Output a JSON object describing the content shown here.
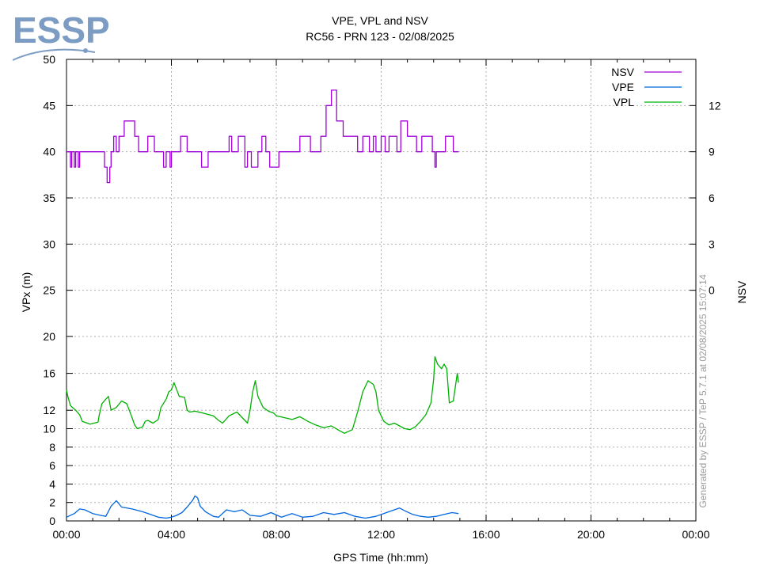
{
  "logo": {
    "text": "ESSP",
    "color": "#7c9cc4"
  },
  "chart_data": {
    "type": "line",
    "title": "VPE, VPL and NSV",
    "subtitle": "RC56 - PRN 123 - 02/08/2025",
    "xlabel": "GPS Time (hh:mm)",
    "ylabel": "VPx (m)",
    "y2label": "NSV",
    "watermark": "Generated by ESSP / TeP 5.7.1 at 02/08/2025 15:07:14",
    "x_unit": "hours",
    "xlim": [
      0,
      24
    ],
    "x_ticks": [
      {
        "value": 0,
        "label": "00:00"
      },
      {
        "value": 4,
        "label": "04:00"
      },
      {
        "value": 8,
        "label": "08:00"
      },
      {
        "value": 12,
        "label": "12:00"
      },
      {
        "value": 16,
        "label": "16:00"
      },
      {
        "value": 20,
        "label": "20:00"
      },
      {
        "value": 24,
        "label": "00:00"
      }
    ],
    "y_axis_note": "piecewise: 0-20 m on the lower band, 20-50 m on the upper band",
    "y_ticks_left": [
      {
        "value": 0,
        "label": "0"
      },
      {
        "value": 2,
        "label": "2"
      },
      {
        "value": 4,
        "label": "4"
      },
      {
        "value": 6,
        "label": "6"
      },
      {
        "value": 8,
        "label": "8"
      },
      {
        "value": 10,
        "label": "10"
      },
      {
        "value": 12,
        "label": "12"
      },
      {
        "value": 16,
        "label": "16"
      },
      {
        "value": 20,
        "label": "20"
      },
      {
        "value": 25,
        "label": "25"
      },
      {
        "value": 30,
        "label": "30"
      },
      {
        "value": 35,
        "label": "35"
      },
      {
        "value": 40,
        "label": "40"
      },
      {
        "value": 45,
        "label": "45"
      },
      {
        "value": 50,
        "label": "50"
      }
    ],
    "y2_ticks": [
      {
        "value": 0,
        "label": "0"
      },
      {
        "value": 3,
        "label": "3"
      },
      {
        "value": 6,
        "label": "6"
      },
      {
        "value": 9,
        "label": "9"
      },
      {
        "value": 12,
        "label": "12"
      }
    ],
    "y2_note": "NSV 0 at VPx 25, 3 units per 5 m",
    "grid": true,
    "legend_position": "top-right",
    "series": [
      {
        "name": "NSV",
        "color": "#a000d8",
        "axis": "right",
        "step": true,
        "x": [
          0,
          0.15,
          0.2,
          0.3,
          0.35,
          0.45,
          0.5,
          1.45,
          1.55,
          1.65,
          1.7,
          1.8,
          1.9,
          2.0,
          2.2,
          2.6,
          2.75,
          3.1,
          3.35,
          3.7,
          3.8,
          3.95,
          4.0,
          4.25,
          4.35,
          4.6,
          4.8,
          5.05,
          5.15,
          5.4,
          5.5,
          6.1,
          6.2,
          6.3,
          6.55,
          6.8,
          6.9,
          7.05,
          7.3,
          7.45,
          7.6,
          7.75,
          8.1,
          8.3,
          8.9,
          9.05,
          9.3,
          9.7,
          9.9,
          10.1,
          10.3,
          10.55,
          10.75,
          11.1,
          11.3,
          11.55,
          11.7,
          11.8,
          12.0,
          12.15,
          12.3,
          12.6,
          12.75,
          13.0,
          13.35,
          13.55,
          13.95,
          14.05,
          14.1,
          14.25,
          14.45,
          14.75,
          14.95
        ],
        "y": [
          9,
          8,
          9,
          8,
          9,
          8,
          9,
          8,
          7,
          8,
          9,
          10,
          9,
          10,
          11,
          10,
          9,
          10,
          9,
          8,
          9,
          8,
          9,
          9,
          10,
          9,
          9,
          9,
          8,
          9,
          9,
          9,
          10,
          9,
          10,
          8,
          9,
          8,
          9,
          10,
          9,
          8,
          9,
          9,
          10,
          10,
          9,
          10,
          12,
          13,
          11,
          10,
          10,
          9,
          10,
          9,
          10,
          9,
          10,
          9,
          10,
          9,
          11,
          10,
          9,
          10,
          9,
          8,
          9,
          9,
          10,
          9,
          9
        ]
      },
      {
        "name": "VPE",
        "color": "#0066e0",
        "axis": "left",
        "step": false,
        "x": [
          0,
          0.3,
          0.5,
          0.7,
          1.0,
          1.3,
          1.5,
          1.7,
          1.9,
          2.1,
          2.5,
          2.9,
          3.2,
          3.5,
          3.8,
          4.0,
          4.2,
          4.4,
          4.6,
          4.8,
          4.9,
          5.0,
          5.1,
          5.3,
          5.6,
          5.8,
          6.1,
          6.4,
          6.7,
          7.0,
          7.4,
          7.8,
          8.2,
          8.6,
          9.0,
          9.4,
          9.8,
          10.2,
          10.6,
          11.0,
          11.4,
          11.8,
          12.2,
          12.5,
          12.7,
          12.9,
          13.2,
          13.5,
          13.8,
          14.1,
          14.4,
          14.7,
          14.95
        ],
        "y": [
          0.4,
          0.8,
          1.3,
          1.2,
          0.8,
          0.6,
          0.5,
          1.6,
          2.2,
          1.5,
          1.3,
          1.0,
          0.7,
          0.4,
          0.3,
          0.4,
          0.6,
          0.9,
          1.5,
          2.2,
          2.7,
          2.5,
          1.6,
          1.0,
          0.5,
          0.4,
          1.2,
          1.0,
          1.2,
          0.6,
          0.5,
          0.9,
          0.4,
          0.8,
          0.4,
          0.5,
          0.9,
          0.7,
          0.9,
          0.5,
          0.3,
          0.5,
          0.9,
          1.2,
          1.4,
          1.1,
          0.7,
          0.5,
          0.4,
          0.5,
          0.7,
          0.9,
          0.8
        ]
      },
      {
        "name": "VPL",
        "color": "#00b000",
        "axis": "left",
        "step": false,
        "x": [
          0,
          0.05,
          0.15,
          0.35,
          0.5,
          0.6,
          0.9,
          1.2,
          1.25,
          1.35,
          1.5,
          1.6,
          1.7,
          1.9,
          2.1,
          2.3,
          2.5,
          2.6,
          2.7,
          2.9,
          3.0,
          3.1,
          3.3,
          3.5,
          3.6,
          3.8,
          3.9,
          4.0,
          4.1,
          4.3,
          4.5,
          4.6,
          4.7,
          4.9,
          5.2,
          5.6,
          5.8,
          5.95,
          6.2,
          6.5,
          6.7,
          6.9,
          7.0,
          7.1,
          7.2,
          7.3,
          7.5,
          7.7,
          7.9,
          8.0,
          8.3,
          8.6,
          8.9,
          9.2,
          9.5,
          9.8,
          10.1,
          10.4,
          10.6,
          10.9,
          11.1,
          11.3,
          11.5,
          11.7,
          11.8,
          11.9,
          12.1,
          12.3,
          12.5,
          12.7,
          12.9,
          13.1,
          13.3,
          13.5,
          13.7,
          13.9,
          14.0,
          14.05,
          14.15,
          14.3,
          14.4,
          14.5,
          14.6,
          14.75,
          14.9,
          14.95
        ],
        "y": [
          14.2,
          13.5,
          12.5,
          12.0,
          11.5,
          10.8,
          10.5,
          10.7,
          11.5,
          12.7,
          13.2,
          13.5,
          12.0,
          12.3,
          13.0,
          12.7,
          11.2,
          10.4,
          10.0,
          10.2,
          10.8,
          10.9,
          10.6,
          11.0,
          12.3,
          13.2,
          14.0,
          14.2,
          15.0,
          13.5,
          13.4,
          12.0,
          11.8,
          11.9,
          11.7,
          11.4,
          10.9,
          10.6,
          11.4,
          11.8,
          11.2,
          10.6,
          12.0,
          14.0,
          15.2,
          13.5,
          12.3,
          11.9,
          11.7,
          11.4,
          11.2,
          11.0,
          11.3,
          10.8,
          10.4,
          10.1,
          10.3,
          9.8,
          9.5,
          9.9,
          11.8,
          14.0,
          15.2,
          14.8,
          14.0,
          12.0,
          10.8,
          10.4,
          10.6,
          10.3,
          10.0,
          9.9,
          10.2,
          10.8,
          11.5,
          12.8,
          15.4,
          17.8,
          17.0,
          16.5,
          17.0,
          16.5,
          12.8,
          13.0,
          16.0,
          15.0
        ]
      }
    ]
  }
}
